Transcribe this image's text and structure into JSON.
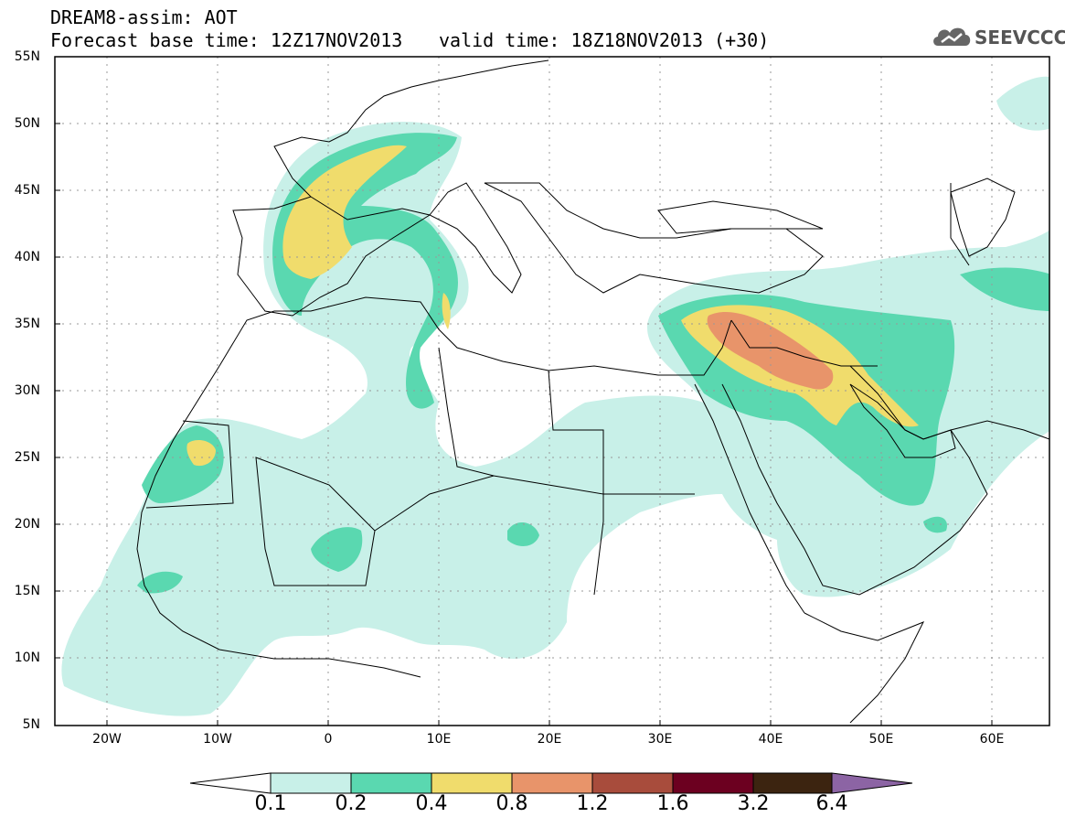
{
  "header": {
    "title": "DREAM8-assim: AOT",
    "base_time": "Forecast base time: 12Z17NOV2013",
    "valid_time": "valid time: 18Z18NOV2013 (+30)",
    "logo_text": "SEEVCCC"
  },
  "axes": {
    "lat_labels": [
      "55N",
      "50N",
      "45N",
      "40N",
      "35N",
      "30N",
      "25N",
      "20N",
      "15N",
      "10N",
      "5N"
    ],
    "lon_labels": [
      "20W",
      "10W",
      "0",
      "10E",
      "20E",
      "30E",
      "40E",
      "50E",
      "60E"
    ]
  },
  "colorbar": {
    "labels": [
      "0.1",
      "0.2",
      "0.4",
      "0.8",
      "1.2",
      "1.6",
      "3.2",
      "6.4"
    ],
    "colors": [
      "#ffffff",
      "#c8f0e8",
      "#5ad8b0",
      "#f0dc6c",
      "#e8946a",
      "#a84c3c",
      "#6c0020",
      "#3c2410",
      "#8c64a4"
    ]
  },
  "legend": {
    "levels": [
      0.1,
      0.2,
      0.4,
      0.8,
      1.2,
      1.6,
      3.2,
      6.4
    ]
  }
}
